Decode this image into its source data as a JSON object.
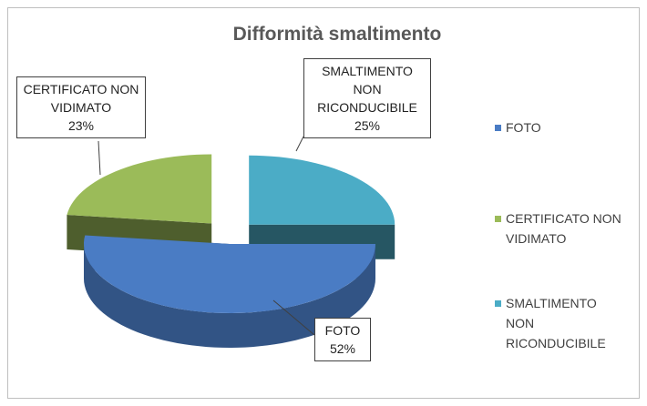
{
  "chart_data": {
    "type": "pie",
    "title": "Difformità smaltimento",
    "categories": [
      "FOTO",
      "CERTIFICATO NON VIDIMATO",
      "SMALTIMENTO NON RICONDUCIBILE"
    ],
    "values": [
      52,
      23,
      25
    ],
    "value_labels": [
      "52%",
      "23%",
      "25%"
    ],
    "colors": [
      "#4a7cc4",
      "#9bbb59",
      "#4bacc6"
    ],
    "legend": "right"
  }
}
